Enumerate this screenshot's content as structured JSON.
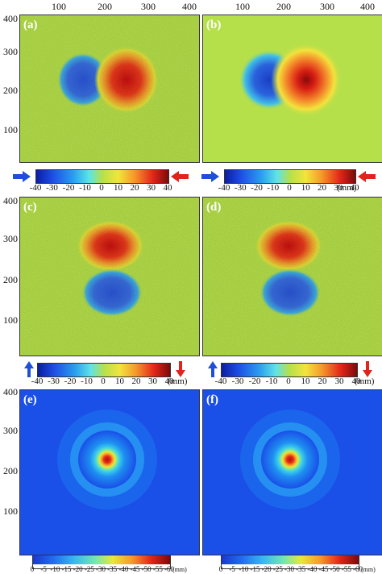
{
  "top_axis": {
    "ticks": [
      "100",
      "200",
      "300",
      "400",
      "100",
      "200",
      "300",
      "400"
    ]
  },
  "row1_y": {
    "ticks": [
      "400",
      "300",
      "200",
      "100"
    ]
  },
  "row2_y": {
    "ticks": [
      "400",
      "300",
      "200",
      "100"
    ]
  },
  "row3_y": {
    "ticks": [
      "400",
      "300",
      "200",
      "100"
    ]
  },
  "panels": [
    {
      "label": "(a)"
    },
    {
      "label": "(b)"
    },
    {
      "label": "(c)"
    },
    {
      "label": "(d)"
    },
    {
      "label": "(e)"
    },
    {
      "label": "(f)"
    }
  ],
  "colorbar_xy": {
    "labels": [
      "-40",
      "-30",
      "-20",
      "-10",
      "0",
      "10",
      "20",
      "30",
      "40"
    ],
    "unit": "(mm)"
  },
  "colorbar_z": {
    "labels": [
      "0",
      "-5",
      "-10",
      "-15",
      "-20",
      "-25",
      "-30",
      "-35",
      "-40",
      "-45",
      "-50",
      "-55",
      "-60"
    ],
    "unit": "(mm)"
  },
  "colors": {
    "blue": "#1f4fd8",
    "red": "#e0241b",
    "background_green": "#b6e04a"
  }
}
